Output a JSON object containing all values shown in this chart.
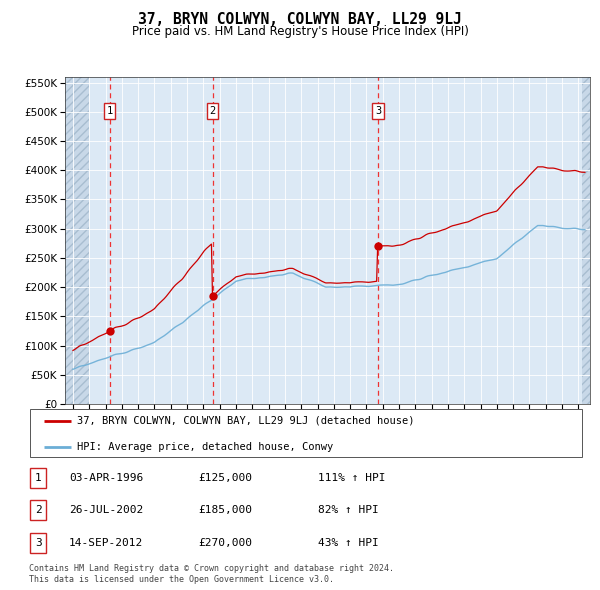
{
  "title": "37, BRYN COLWYN, COLWYN BAY, LL29 9LJ",
  "subtitle": "Price paid vs. HM Land Registry's House Price Index (HPI)",
  "legend_line1": "37, BRYN COLWYN, COLWYN BAY, LL29 9LJ (detached house)",
  "legend_line2": "HPI: Average price, detached house, Conwy",
  "transactions": [
    {
      "num": 1,
      "date": "03-APR-1996",
      "price": 125000,
      "pct": "111%",
      "dir": "↑",
      "year": 1996.25
    },
    {
      "num": 2,
      "date": "26-JUL-2002",
      "price": 185000,
      "pct": "82%",
      "dir": "↑",
      "year": 2002.56
    },
    {
      "num": 3,
      "date": "14-SEP-2012",
      "price": 270000,
      "pct": "43%",
      "dir": "↑",
      "year": 2012.71
    }
  ],
  "footer1": "Contains HM Land Registry data © Crown copyright and database right 2024.",
  "footer2": "This data is licensed under the Open Government Licence v3.0.",
  "hpi_color": "#6baed6",
  "price_color": "#cc0000",
  "dot_color": "#cc0000",
  "vline_color": "#ee3333",
  "bg_color": "#dce9f5",
  "ylim": [
    0,
    560000
  ],
  "yticks": [
    0,
    50000,
    100000,
    150000,
    200000,
    250000,
    300000,
    350000,
    400000,
    450000,
    500000,
    550000
  ],
  "xlim_start": 1993.5,
  "xlim_end": 2025.7,
  "hatch_end": 1995.0,
  "hatch_start_right": 2025.2
}
